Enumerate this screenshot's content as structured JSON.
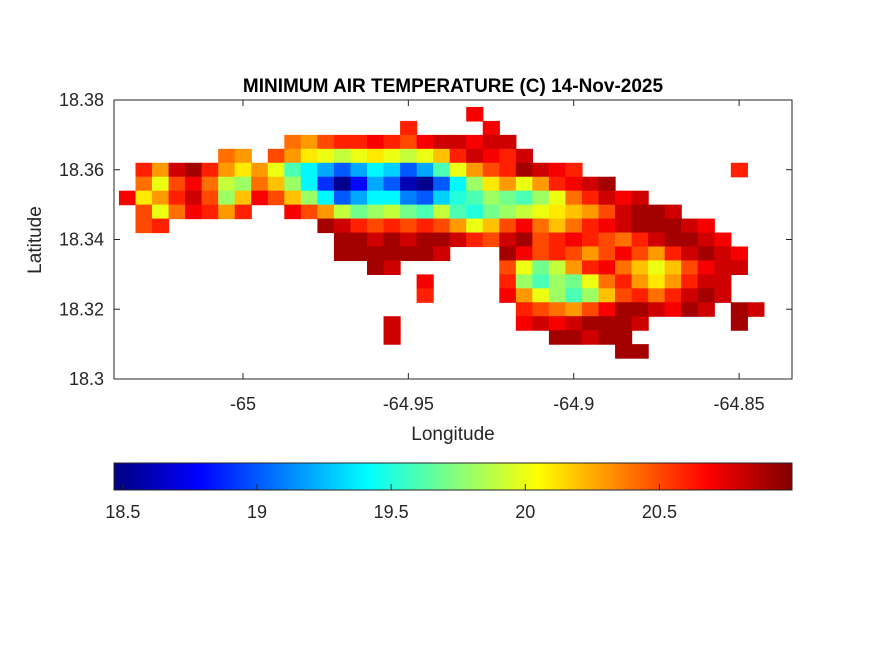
{
  "chart_data": {
    "type": "heatmap",
    "title": "MINIMUM AIR TEMPERATURE (C) 14-Nov-2025",
    "xlabel": "Longitude",
    "ylabel": "Latitude",
    "xlim": [
      -65.039,
      -64.834
    ],
    "ylim": [
      18.3,
      18.38
    ],
    "x_ticks": [
      -65,
      -64.95,
      -64.9,
      -64.85
    ],
    "x_tick_labels": [
      "-65",
      "-64.95",
      "-64.9",
      "-64.85"
    ],
    "y_ticks": [
      18.38,
      18.36,
      18.34,
      18.32,
      18.3
    ],
    "y_tick_labels": [
      "18.38",
      "18.36",
      "18.34",
      "18.32",
      "18.3"
    ],
    "colormap": "jet",
    "clim": [
      18.467,
      20.994
    ],
    "colorbar": {
      "location": "bottom",
      "ticks": [
        18.5,
        19,
        19.5,
        20,
        20.5
      ],
      "tick_labels": [
        "18.5",
        "19",
        "19.5",
        "20",
        "20.5"
      ]
    },
    "grid": false,
    "cell_size": {
      "lon": 0.005,
      "lat": 0.004
    },
    "rows": [
      {
        "lat": 18.376,
        "segments": [
          {
            "start_lon": -64.93,
            "values": [
              20.7
            ]
          }
        ]
      },
      {
        "lat": 18.372,
        "segments": [
          {
            "start_lon": -64.95,
            "values": [
              20.6
            ]
          },
          {
            "start_lon": -64.925,
            "values": [
              20.7
            ]
          }
        ]
      },
      {
        "lat": 18.368,
        "segments": [
          {
            "start_lon": -64.985,
            "values": [
              20.4,
              20.3,
              20.5,
              20.6,
              20.6,
              20.7,
              20.6,
              20.5,
              20.7,
              20.8,
              20.8,
              20.7,
              20.8,
              20.8
            ]
          }
        ]
      },
      {
        "lat": 18.364,
        "segments": [
          {
            "start_lon": -65.005,
            "values": [
              20.4,
              20.3
            ]
          },
          {
            "start_lon": -64.99,
            "values": [
              20.5,
              20.3,
              20.1,
              20.0,
              19.9,
              20.0,
              20.1,
              20.0,
              19.9,
              20.0,
              20.2,
              20.6,
              20.8,
              20.7,
              20.6,
              20.8
            ]
          }
        ]
      },
      {
        "lat": 18.36,
        "segments": [
          {
            "start_lon": -65.03,
            "values": [
              20.6,
              20.3,
              20.8,
              20.9,
              20.6,
              20.3,
              20.1,
              20.3,
              20.0,
              19.6,
              19.4,
              19.2,
              19.0,
              19.2,
              19.4,
              19.3,
              19.0,
              19.2,
              19.6,
              20.0,
              20.3,
              20.5,
              20.6,
              20.9,
              20.8,
              20.7,
              20.6
            ]
          },
          {
            "start_lon": -64.85,
            "values": [
              20.6
            ]
          }
        ]
      },
      {
        "lat": 18.356,
        "segments": [
          {
            "start_lon": -65.03,
            "values": [
              20.4,
              20.0,
              20.5,
              20.7,
              20.4,
              19.9,
              19.8,
              20.4,
              20.2,
              19.8,
              19.4,
              18.9,
              18.5,
              18.8,
              19.2,
              19.0,
              18.6,
              18.5,
              19.0,
              19.4,
              19.8,
              20.1,
              20.3,
              20.0,
              20.3,
              20.6,
              20.7,
              20.8,
              20.9
            ]
          }
        ]
      },
      {
        "lat": 18.352,
        "segments": [
          {
            "start_lon": -65.035,
            "values": [
              20.7,
              20.1,
              20.3,
              20.6,
              20.8,
              20.5,
              19.8,
              20.2,
              20.7,
              20.5,
              20.2,
              19.8,
              19.4,
              19.0,
              19.2,
              19.4,
              19.4,
              19.1,
              19.0,
              19.3,
              19.5,
              19.6,
              19.8,
              19.7,
              19.6,
              19.8,
              20.0,
              20.4,
              20.6,
              20.8,
              20.7,
              20.8
            ]
          }
        ]
      },
      {
        "lat": 18.348,
        "segments": [
          {
            "start_lon": -65.03,
            "values": [
              20.5,
              20.0,
              20.4,
              20.7,
              20.6,
              20.3,
              20.6
            ]
          },
          {
            "start_lon": -64.985,
            "values": [
              20.7,
              20.5,
              20.3,
              19.9,
              19.7,
              19.8,
              19.9,
              19.7,
              19.6,
              19.9,
              19.6,
              19.5,
              19.7,
              19.8,
              19.9,
              20.0,
              20.1,
              20.2,
              20.3,
              20.5,
              20.8,
              20.9,
              20.9,
              20.8
            ]
          }
        ]
      },
      {
        "lat": 18.344,
        "segments": [
          {
            "start_lon": -65.03,
            "values": [
              20.5,
              20.6
            ]
          },
          {
            "start_lon": -64.975,
            "values": [
              20.9,
              20.8,
              20.6,
              20.5,
              20.6,
              20.5,
              20.6,
              20.5,
              20.3,
              20.0,
              20.2,
              20.5,
              20.7,
              20.4,
              20.2,
              20.4,
              20.6,
              20.7,
              20.8,
              20.9,
              20.9,
              20.9,
              20.8,
              20.7
            ]
          }
        ]
      },
      {
        "lat": 18.34,
        "segments": [
          {
            "start_lon": -64.97,
            "values": [
              20.9,
              20.9,
              20.8,
              20.9,
              20.8,
              20.9,
              20.9,
              20.8,
              20.6,
              20.5,
              20.8,
              20.9,
              20.5,
              20.6,
              20.7,
              20.6,
              20.5,
              20.4,
              20.6,
              20.8,
              20.9,
              20.9,
              20.8,
              20.7
            ]
          }
        ]
      },
      {
        "lat": 18.336,
        "segments": [
          {
            "start_lon": -64.97,
            "values": [
              20.9,
              20.9,
              20.9,
              20.9,
              20.9,
              20.9,
              20.8
            ]
          },
          {
            "start_lon": -64.92,
            "values": [
              20.9,
              20.7,
              20.5,
              20.6,
              20.5,
              20.3,
              20.5,
              20.7,
              20.5,
              20.3,
              20.6,
              20.8,
              20.9,
              20.8,
              20.7
            ]
          }
        ]
      },
      {
        "lat": 18.332,
        "segments": [
          {
            "start_lon": -64.96,
            "values": [
              20.9,
              20.8
            ]
          },
          {
            "start_lon": -64.92,
            "values": [
              20.5,
              20.0,
              19.7,
              19.9,
              20.3,
              20.6,
              20.7,
              20.4,
              20.2,
              20.0,
              20.2,
              20.5,
              20.7,
              20.8,
              20.8
            ]
          }
        ]
      },
      {
        "lat": 18.328,
        "segments": [
          {
            "start_lon": -64.945,
            "values": [
              20.7
            ]
          },
          {
            "start_lon": -64.92,
            "values": [
              20.6,
              19.8,
              19.6,
              19.8,
              19.7,
              20.0,
              20.4,
              20.6,
              20.3,
              20.1,
              20.3,
              20.6,
              20.8,
              20.8
            ]
          }
        ]
      },
      {
        "lat": 18.324,
        "segments": [
          {
            "start_lon": -64.945,
            "values": [
              20.6
            ]
          },
          {
            "start_lon": -64.92,
            "values": [
              20.7,
              20.3,
              20.0,
              19.8,
              19.6,
              19.8,
              20.2,
              20.5,
              20.6,
              20.4,
              20.6,
              20.8,
              20.9,
              20.8
            ]
          }
        ]
      },
      {
        "lat": 18.32,
        "segments": [
          {
            "start_lon": -64.915,
            "values": [
              20.6,
              20.5,
              20.4,
              20.3,
              20.5,
              20.7,
              20.9,
              20.9,
              20.8,
              20.7,
              20.9,
              20.8
            ]
          },
          {
            "start_lon": -64.85,
            "values": [
              20.9,
              20.8
            ]
          }
        ]
      },
      {
        "lat": 18.316,
        "segments": [
          {
            "start_lon": -64.955,
            "values": [
              20.8
            ]
          },
          {
            "start_lon": -64.915,
            "values": [
              20.7,
              20.8,
              20.7,
              20.8,
              20.9,
              20.9,
              20.9,
              20.8
            ]
          },
          {
            "start_lon": -64.85,
            "values": [
              20.9
            ]
          }
        ]
      },
      {
        "lat": 18.312,
        "segments": [
          {
            "start_lon": -64.955,
            "values": [
              20.8
            ]
          },
          {
            "start_lon": -64.905,
            "values": [
              20.9,
              20.9,
              20.8,
              20.9,
              20.9
            ]
          }
        ]
      },
      {
        "lat": 18.308,
        "segments": [
          {
            "start_lon": -64.885,
            "values": [
              20.9,
              20.9
            ]
          }
        ]
      }
    ]
  }
}
